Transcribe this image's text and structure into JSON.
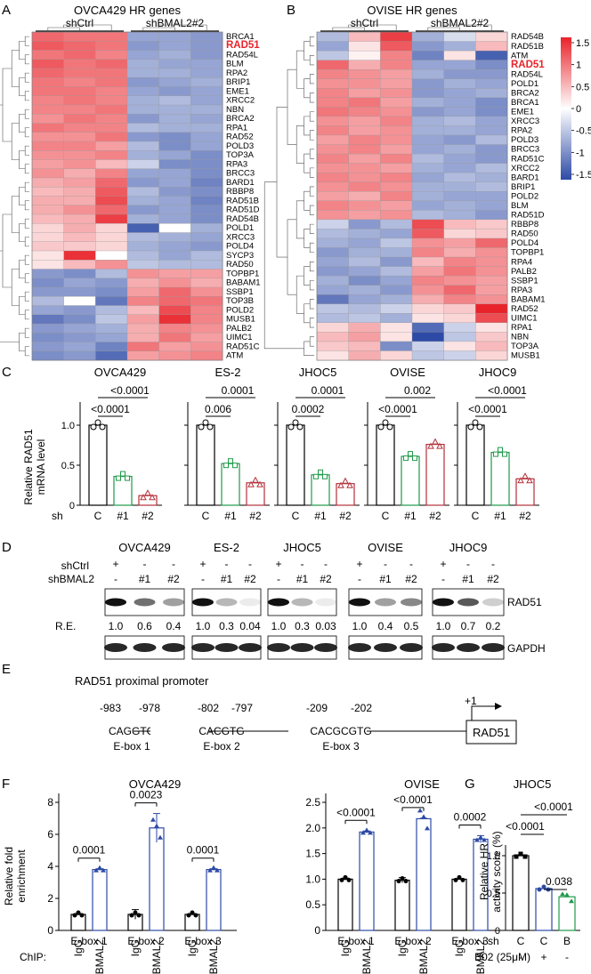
{
  "panels": {
    "A": {
      "letter": "A",
      "title": "OVCA429 HR genes",
      "groups": [
        "shCtrl",
        "shBMAL2#2"
      ],
      "genes": [
        "BRCA1",
        "RAD51",
        "RAD54L",
        "BLM",
        "RPA2",
        "BRIP1",
        "EME1",
        "XRCC2",
        "NBN",
        "BRCA2",
        "RPA1",
        "RAD52",
        "POLD3",
        "TOP3A",
        "RPA3",
        "BRCC3",
        "BARD1",
        "RBBP8",
        "RAD51B",
        "RAD51D",
        "RAD54B",
        "POLD1",
        "XRCC3",
        "POLD4",
        "SYCP3",
        "RAD50",
        "TOPBP1",
        "BABAM1",
        "SSBP1",
        "TOP3B",
        "POLD2",
        "MUSB1",
        "PALB2",
        "UIMC1",
        "RAD51C",
        "ATM"
      ],
      "highlight": "RAD51",
      "values": [
        [
          1.1,
          1.0,
          1.0,
          -0.8,
          -0.8,
          -0.9
        ],
        [
          1.2,
          1.1,
          1.0,
          -0.9,
          -0.8,
          -0.9
        ],
        [
          1.0,
          1.1,
          0.9,
          -0.8,
          -0.7,
          -0.9
        ],
        [
          1.2,
          1.0,
          1.1,
          -0.7,
          -0.8,
          -0.8
        ],
        [
          1.1,
          1.0,
          1.0,
          -0.7,
          -0.7,
          -0.8
        ],
        [
          1.0,
          0.9,
          1.0,
          -0.9,
          -0.8,
          -0.7
        ],
        [
          1.0,
          1.0,
          0.9,
          -0.8,
          -0.9,
          -0.8
        ],
        [
          0.9,
          1.0,
          0.9,
          -0.7,
          -0.6,
          -0.8
        ],
        [
          0.9,
          0.9,
          1.0,
          -0.7,
          -0.7,
          -0.7
        ],
        [
          0.8,
          1.0,
          0.9,
          -0.9,
          -0.7,
          -0.8
        ],
        [
          1.0,
          0.9,
          0.9,
          -0.6,
          -0.7,
          -0.7
        ],
        [
          0.8,
          0.8,
          1.0,
          -0.9,
          -1.0,
          -0.8
        ],
        [
          0.9,
          0.9,
          0.7,
          -0.6,
          -1.0,
          -0.8
        ],
        [
          0.8,
          0.8,
          0.9,
          -0.7,
          -0.8,
          -1.0
        ],
        [
          0.7,
          0.8,
          0.5,
          -0.4,
          -1.0,
          -1.0
        ],
        [
          0.8,
          0.6,
          0.9,
          -0.8,
          -0.8,
          -1.0
        ],
        [
          0.6,
          0.7,
          1.1,
          -0.9,
          -0.8,
          -1.1
        ],
        [
          0.5,
          0.6,
          1.2,
          -0.6,
          -0.9,
          -1.0
        ],
        [
          0.6,
          0.6,
          1.3,
          -0.7,
          -0.8,
          -1.1
        ],
        [
          0.6,
          0.8,
          1.1,
          -0.9,
          -0.8,
          -1.0
        ],
        [
          0.5,
          0.6,
          1.4,
          -0.7,
          -0.8,
          -1.0
        ],
        [
          0.3,
          0.6,
          0.3,
          -1.4,
          0.0,
          -0.7
        ],
        [
          0.3,
          0.5,
          0.3,
          -0.6,
          -0.7,
          -0.8
        ],
        [
          0.4,
          0.4,
          0.3,
          -0.7,
          -0.8,
          -0.9
        ],
        [
          0.2,
          1.5,
          0.0,
          -0.6,
          -0.8,
          -0.6
        ],
        [
          0.2,
          0.5,
          0.8,
          -0.5,
          -0.6,
          -0.6
        ],
        [
          -0.9,
          -1.0,
          -0.6,
          0.8,
          0.7,
          0.7
        ],
        [
          -1.0,
          -0.8,
          -0.9,
          0.6,
          0.8,
          0.6
        ],
        [
          -0.9,
          -0.9,
          -1.0,
          0.7,
          1.1,
          0.8
        ],
        [
          -0.6,
          0.0,
          -1.2,
          0.9,
          1.1,
          1.0
        ],
        [
          -0.8,
          -0.9,
          -0.6,
          0.5,
          1.3,
          0.9
        ],
        [
          -1.2,
          -1.0,
          -0.5,
          0.7,
          1.5,
          0.9
        ],
        [
          -0.9,
          -0.8,
          -0.7,
          0.6,
          0.9,
          0.8
        ],
        [
          -1.0,
          -0.9,
          -0.8,
          0.6,
          1.0,
          0.7
        ],
        [
          -0.9,
          -0.8,
          -1.1,
          1.0,
          0.7,
          0.8
        ],
        [
          -1.0,
          -0.9,
          -1.3,
          0.7,
          0.8,
          0.9
        ]
      ]
    },
    "B": {
      "letter": "B",
      "title": "OVISE HR genes",
      "groups": [
        "shCtrl",
        "shBMAL2#2"
      ],
      "genes": [
        "RAD54B",
        "RAD51B",
        "ATM",
        "RAD51",
        "RAD54L",
        "POLD1",
        "BRCA2",
        "BRCA1",
        "EME1",
        "XRCC3",
        "RPA2",
        "POLD3",
        "BRCC3",
        "RAD51C",
        "XRCC2",
        "BARD1",
        "BRIP1",
        "POLD2",
        "BLM",
        "RAD51D",
        "RBBP8",
        "RAD50",
        "POLD4",
        "TOPBP1",
        "RPA4",
        "PALB2",
        "SSBP1",
        "RPA3",
        "BABAM1",
        "RAD52",
        "UIMC1",
        "RPA1",
        "NBN",
        "TOP3A",
        "MUSB1"
      ],
      "highlight": "RAD51",
      "values": [
        [
          -0.6,
          0.5,
          1.4,
          -0.7,
          -0.3,
          0.3
        ],
        [
          -0.8,
          0.2,
          1.2,
          -0.9,
          -0.7,
          0.5
        ],
        [
          -0.5,
          0.1,
          0.9,
          -1.1,
          0.2,
          -1.4
        ],
        [
          1.1,
          0.6,
          0.9,
          -0.8,
          -0.8,
          -1.0
        ],
        [
          0.9,
          0.8,
          0.7,
          -0.7,
          -0.9,
          -0.9
        ],
        [
          0.8,
          0.8,
          0.7,
          -0.9,
          -0.7,
          -0.8
        ],
        [
          0.9,
          0.7,
          0.8,
          -0.9,
          -0.8,
          -0.7
        ],
        [
          0.9,
          1.0,
          0.7,
          -0.7,
          -0.8,
          -1.0
        ],
        [
          1.0,
          0.9,
          0.8,
          -0.9,
          -0.8,
          -1.0
        ],
        [
          0.8,
          0.7,
          0.9,
          -0.7,
          -0.6,
          -0.8
        ],
        [
          0.9,
          0.7,
          0.8,
          -0.7,
          -0.7,
          -0.8
        ],
        [
          0.7,
          0.9,
          0.8,
          -0.8,
          -0.9,
          -0.6
        ],
        [
          0.8,
          0.9,
          0.7,
          -0.8,
          -0.7,
          -0.9
        ],
        [
          0.9,
          0.7,
          0.9,
          -0.6,
          -0.8,
          -0.9
        ],
        [
          0.8,
          0.8,
          0.7,
          -0.7,
          -0.8,
          -0.6
        ],
        [
          0.9,
          0.8,
          0.9,
          -0.8,
          -0.6,
          -0.7
        ],
        [
          0.8,
          0.9,
          0.8,
          -0.7,
          -0.7,
          -0.6
        ],
        [
          0.7,
          0.6,
          0.9,
          -0.7,
          -0.8,
          -0.8
        ],
        [
          0.9,
          0.8,
          0.7,
          -0.8,
          -0.7,
          -0.8
        ],
        [
          0.8,
          0.7,
          0.8,
          -0.6,
          -0.7,
          -0.9
        ],
        [
          -0.4,
          -0.9,
          -0.6,
          1.3,
          0.5,
          0.4
        ],
        [
          -0.6,
          -0.7,
          -0.8,
          1.2,
          0.3,
          0.4
        ],
        [
          -0.7,
          -0.8,
          -0.5,
          0.8,
          0.7,
          1.1
        ],
        [
          -0.9,
          -0.7,
          -0.7,
          0.9,
          0.6,
          0.8
        ],
        [
          -0.8,
          -0.6,
          -0.9,
          0.5,
          0.9,
          0.8
        ],
        [
          -0.9,
          -0.8,
          -0.6,
          0.7,
          1.0,
          0.8
        ],
        [
          -0.7,
          -1.0,
          -0.8,
          0.9,
          0.8,
          0.7
        ],
        [
          -0.8,
          -0.7,
          -0.9,
          0.8,
          1.1,
          0.7
        ],
        [
          -1.2,
          -0.8,
          -0.7,
          0.6,
          0.9,
          0.8
        ],
        [
          -0.5,
          -0.6,
          -0.4,
          0.3,
          0.4,
          1.6
        ],
        [
          -0.6,
          -0.5,
          -0.7,
          0.2,
          0.3,
          1.3
        ],
        [
          0.3,
          0.6,
          0.2,
          -1.3,
          -0.4,
          0.2
        ],
        [
          0.5,
          0.7,
          0.2,
          -1.6,
          -0.5,
          0.4
        ],
        [
          0.4,
          0.5,
          -1.0,
          -0.4,
          0.2,
          0.5
        ],
        [
          0.2,
          0.6,
          0.3,
          -0.5,
          -0.4,
          0.3
        ]
      ]
    },
    "colorbar": {
      "ticks": [
        "1.5",
        "1",
        "0.5",
        "0",
        "-0.5",
        "-1",
        "-1.5"
      ],
      "colors": {
        "high": "#e8232a",
        "mid": "#ffffff",
        "low": "#2d4aa6"
      }
    },
    "C": {
      "letter": "C",
      "ylabel1": "Relative RAD51",
      "ylabel2": "mRNA level",
      "yticks": [
        "0",
        "0.5",
        "1.0"
      ],
      "sh_label": "sh",
      "categories": [
        "C",
        "#1",
        "#2"
      ],
      "colors": [
        "#000000",
        "#1f9a4a",
        "#b5303a"
      ],
      "cells": [
        {
          "name": "OVCA429",
          "values": [
            1.0,
            0.36,
            0.12
          ],
          "p_low": "<0.0001",
          "p_high": "<0.0001"
        },
        {
          "name": "ES-2",
          "values": [
            1.0,
            0.52,
            0.28
          ],
          "p_low": "0.006",
          "p_high": "0.0001"
        },
        {
          "name": "JHOC5",
          "values": [
            1.0,
            0.38,
            0.27
          ],
          "p_low": "0.0002",
          "p_high": "0.0001"
        },
        {
          "name": "OVISE",
          "values": [
            1.0,
            0.61,
            0.76
          ],
          "p_low": "<0.0001",
          "p_high": "0.002"
        },
        {
          "name": "JHOC9",
          "values": [
            1.0,
            0.66,
            0.33
          ],
          "p_low": "<0.0001",
          "p_high": "<0.0001"
        }
      ]
    },
    "D": {
      "letter": "D",
      "cells": [
        "OVCA429",
        "ES-2",
        "JHOC5",
        "OVISE",
        "JHOC9"
      ],
      "row1_label": "shCtrl",
      "row2_label": "shBMAL2",
      "row1": [
        "+",
        "-",
        "-"
      ],
      "row2": [
        "-",
        "#1",
        "#2"
      ],
      "band1": "RAD51",
      "band2": "GAPDH",
      "re_label": "R.E.",
      "re_values": [
        [
          "1.0",
          "0.6",
          "0.4"
        ],
        [
          "1.0",
          "0.3",
          "0.04"
        ],
        [
          "1.0",
          "0.3",
          "0.03"
        ],
        [
          "1.0",
          "0.4",
          "0.5"
        ],
        [
          "1.0",
          "0.7",
          "0.2"
        ]
      ]
    },
    "E": {
      "letter": "E",
      "title": "RAD51 proximal promoter",
      "tss": "+1",
      "gene": "RAD51",
      "boxes": [
        {
          "start": "-983",
          "end": "-978",
          "seq": "CAGGTG",
          "name": "E-box 1"
        },
        {
          "start": "-802",
          "end": "-797",
          "seq": "CACGTG",
          "name": "E-box 2"
        },
        {
          "start": "-209",
          "end": "-202",
          "seq": "CACGCGTG",
          "name": "E-box 3"
        }
      ]
    },
    "F": {
      "letter": "F",
      "ylabel1": "Relative fold",
      "ylabel2": "enrichment",
      "chip_label": "ChIP:",
      "bar_labels": [
        "IgG",
        "BMAL2"
      ],
      "box_labels": [
        "E-box 1",
        "E-box 2",
        "E-box 3"
      ],
      "colors": [
        "#000000",
        "#2d4aa6"
      ],
      "charts": [
        {
          "name": "OVCA429",
          "yticks": [
            "0",
            "2",
            "4",
            "6",
            "8"
          ],
          "ymax": 8,
          "values": [
            [
              1.0,
              3.8
            ],
            [
              1.0,
              6.4
            ],
            [
              1.0,
              3.8
            ]
          ],
          "errors": [
            [
              0.05,
              0.05
            ],
            [
              0.3,
              0.9
            ],
            [
              0.05,
              0.05
            ]
          ],
          "p": [
            "0.0001",
            "0.0023",
            "0.0001"
          ]
        },
        {
          "name": "OVISE",
          "yticks": [
            "0",
            "0.5",
            "1.0",
            "1.5",
            "2.0",
            "2.5"
          ],
          "ymax": 2.5,
          "values": [
            [
              1.0,
              1.92
            ],
            [
              0.98,
              2.18
            ],
            [
              1.0,
              1.78
            ]
          ],
          "errors": [
            [
              0.02,
              0.02
            ],
            [
              0.05,
              0.01
            ],
            [
              0.01,
              0.07
            ]
          ],
          "p": [
            "<0.0001",
            "<0.0001",
            "0.0002"
          ]
        }
      ]
    },
    "G": {
      "letter": "G",
      "title": "JHOC5",
      "ylabel1": "Relative HR",
      "ylabel2": "activity score (%)",
      "yticks": [
        "0",
        "0.5",
        "1.0"
      ],
      "sh_label": "sh",
      "categories": [
        "C",
        "C",
        "B"
      ],
      "b02_label": "B02 (25μM)",
      "b02": [
        "-",
        "+",
        "-"
      ],
      "values": [
        1.0,
        0.56,
        0.45
      ],
      "colors": [
        "#000000",
        "#2d4aa6",
        "#1f9a4a"
      ],
      "p": [
        "<0.0001",
        "<0.0001",
        "0.038"
      ]
    }
  }
}
